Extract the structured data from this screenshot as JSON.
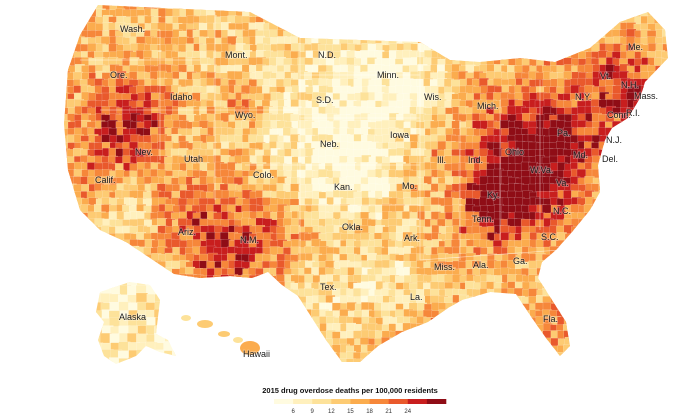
{
  "map": {
    "colors": [
      "#fffbe0",
      "#fff0bd",
      "#fde29a",
      "#fdcb73",
      "#fbac4e",
      "#f6873a",
      "#e9592c",
      "#c81e1e",
      "#8f0d16"
    ],
    "state_labels": [
      {
        "id": "wa",
        "text": "Wash."
      },
      {
        "id": "or",
        "text": "Ore."
      },
      {
        "id": "ca",
        "text": "Calif."
      },
      {
        "id": "nv",
        "text": "Nev."
      },
      {
        "id": "id",
        "text": "Idaho"
      },
      {
        "id": "mt",
        "text": "Mont."
      },
      {
        "id": "wy",
        "text": "Wyo."
      },
      {
        "id": "ut",
        "text": "Utah"
      },
      {
        "id": "co",
        "text": "Colo."
      },
      {
        "id": "az",
        "text": "Ariz."
      },
      {
        "id": "nm",
        "text": "N.M."
      },
      {
        "id": "nd",
        "text": "N.D."
      },
      {
        "id": "sd",
        "text": "S.D."
      },
      {
        "id": "ne",
        "text": "Neb."
      },
      {
        "id": "ks",
        "text": "Kan."
      },
      {
        "id": "ok",
        "text": "Okla."
      },
      {
        "id": "tx",
        "text": "Tex."
      },
      {
        "id": "mn",
        "text": "Minn."
      },
      {
        "id": "ia",
        "text": "Iowa"
      },
      {
        "id": "mo",
        "text": "Mo."
      },
      {
        "id": "ar",
        "text": "Ark."
      },
      {
        "id": "la",
        "text": "La."
      },
      {
        "id": "wi",
        "text": "Wis."
      },
      {
        "id": "il",
        "text": "Ill."
      },
      {
        "id": "mi",
        "text": "Mich."
      },
      {
        "id": "in",
        "text": "Ind."
      },
      {
        "id": "oh",
        "text": "Ohio"
      },
      {
        "id": "ky",
        "text": "Ky."
      },
      {
        "id": "tn",
        "text": "Tenn."
      },
      {
        "id": "ms",
        "text": "Miss."
      },
      {
        "id": "al",
        "text": "Ala."
      },
      {
        "id": "ga",
        "text": "Ga."
      },
      {
        "id": "fl",
        "text": "Fla."
      },
      {
        "id": "sc",
        "text": "S.C."
      },
      {
        "id": "nc",
        "text": "N.C."
      },
      {
        "id": "va",
        "text": "Va."
      },
      {
        "id": "wv",
        "text": "W.Va."
      },
      {
        "id": "pa",
        "text": "Pa."
      },
      {
        "id": "ny",
        "text": "N.Y."
      },
      {
        "id": "md",
        "text": "Md."
      },
      {
        "id": "de",
        "text": "Del."
      },
      {
        "id": "nj",
        "text": "N.J."
      },
      {
        "id": "ct",
        "text": "Conn."
      },
      {
        "id": "ri",
        "text": "R.I."
      },
      {
        "id": "ma",
        "text": "Mass."
      },
      {
        "id": "vt",
        "text": "Vt."
      },
      {
        "id": "nh",
        "text": "N.H."
      },
      {
        "id": "me",
        "text": "Me."
      },
      {
        "id": "ak",
        "text": "Alaska"
      },
      {
        "id": "hi",
        "text": "Hawaii"
      }
    ]
  },
  "legend": {
    "title": "2015 drug overdose deaths per 100,000 residents",
    "ticks": [
      "6",
      "9",
      "12",
      "15",
      "18",
      "21",
      "24"
    ]
  }
}
